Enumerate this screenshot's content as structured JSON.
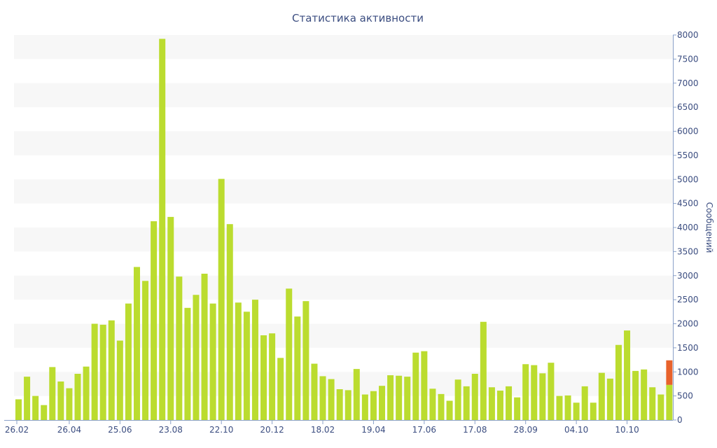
{
  "chart_data": {
    "type": "bar",
    "title": "Статистика активности",
    "ylabel": "Сообщений",
    "xlabel": "",
    "ylim": [
      0,
      8000
    ],
    "y_ticks": [
      0,
      500,
      1000,
      1500,
      2000,
      2500,
      3000,
      3500,
      4000,
      4500,
      5000,
      5500,
      6000,
      6500,
      7000,
      7500,
      8000
    ],
    "y_axis_position": "right",
    "grid": "alternating horizontal bands",
    "x_tick_labels": [
      {
        "label": "26.02",
        "index": 0
      },
      {
        "label": "26.04",
        "index": 6
      },
      {
        "label": "25.06",
        "index": 12
      },
      {
        "label": "23.08",
        "index": 18
      },
      {
        "label": "22.10",
        "index": 24
      },
      {
        "label": "20.12",
        "index": 30
      },
      {
        "label": "18.02",
        "index": 36
      },
      {
        "label": "19.04",
        "index": 42
      },
      {
        "label": "17.06",
        "index": 48
      },
      {
        "label": "17.08",
        "index": 54
      },
      {
        "label": "28.09",
        "index": 60
      },
      {
        "label": "04.10",
        "index": 66
      },
      {
        "label": "10.10",
        "index": 72
      }
    ],
    "series": [
      {
        "values": [
          430,
          900,
          500,
          310,
          1100,
          800,
          660,
          960,
          1110,
          2000,
          1980,
          2070,
          1650,
          2420,
          3180,
          2890,
          4130,
          7920,
          4220,
          2980,
          2330,
          2600,
          3040,
          2420,
          5010,
          4070,
          2440,
          2250,
          2500,
          1760,
          1800,
          1290,
          2730,
          2150,
          2470,
          1170,
          910,
          850,
          640,
          620,
          1060,
          530,
          600,
          710,
          930,
          920,
          900,
          1400,
          1430,
          650,
          540,
          400,
          840,
          700,
          960,
          2040,
          680,
          610,
          700,
          470,
          1160,
          1140,
          970,
          1190,
          500,
          510,
          360,
          700,
          360,
          980,
          860,
          1560,
          1860,
          1020,
          1050,
          680,
          530,
          730
        ],
        "color": "#bbdc2f"
      },
      {
        "values": [
          0,
          0,
          0,
          0,
          0,
          0,
          0,
          0,
          0,
          0,
          0,
          0,
          0,
          0,
          0,
          0,
          0,
          0,
          0,
          0,
          0,
          0,
          0,
          0,
          0,
          0,
          0,
          0,
          0,
          0,
          0,
          0,
          0,
          0,
          0,
          0,
          0,
          0,
          0,
          0,
          0,
          0,
          0,
          0,
          0,
          0,
          0,
          0,
          0,
          0,
          0,
          0,
          0,
          0,
          0,
          0,
          0,
          0,
          0,
          0,
          0,
          0,
          0,
          0,
          0,
          0,
          0,
          0,
          0,
          0,
          0,
          0,
          0,
          0,
          0,
          0,
          0,
          510
        ],
        "color": "#e8622b"
      }
    ],
    "colors": {
      "text": "#3b4d80",
      "band": "#f7f7f7",
      "axis": "#8aa0c8"
    }
  }
}
